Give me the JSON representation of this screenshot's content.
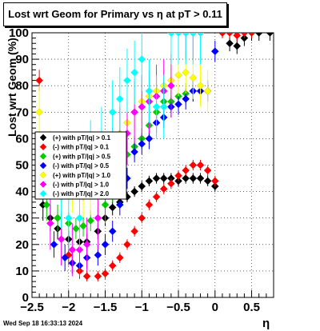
{
  "title": "Lost wrt Geom for Primary vs   η at pT > 0.11",
  "timestamp": "Wed Sep 18 16:33:13 2024",
  "chart_data": {
    "type": "scatter",
    "title": "Lost wrt Geom for Primary vs   η at pT > 0.11",
    "xlabel": "η",
    "ylabel": "Lost wrt Geom (%)",
    "xlim": [
      -2.5,
      0.8
    ],
    "ylim": [
      0,
      100
    ],
    "xticks": [
      "−2.5",
      "−2",
      "−1.5",
      "−1",
      "−0.5",
      "0",
      "0.5"
    ],
    "xtick_values": [
      -2.5,
      -2,
      -1.5,
      -1,
      -0.5,
      0,
      0.5
    ],
    "yticks": [
      "0",
      "10",
      "20",
      "30",
      "40",
      "50",
      "60",
      "70",
      "80",
      "90",
      "100"
    ],
    "ytick_values": [
      0,
      10,
      20,
      30,
      40,
      50,
      60,
      70,
      80,
      90,
      100
    ],
    "grid": true,
    "legend_position": "middle-left",
    "series": [
      {
        "name": "(+) with pT/|q| > 0.1",
        "color": "#000000",
        "x": [
          -2.35,
          -2.25,
          -2.15,
          -2.0,
          -1.85,
          -1.75,
          -1.6,
          -1.5,
          -1.4,
          -1.3,
          -1.2,
          -1.1,
          -1.0,
          -0.9,
          -0.8,
          -0.7,
          -0.6,
          -0.5,
          -0.4,
          -0.3,
          -0.2,
          -0.1,
          0.0,
          0.1,
          0.2,
          0.3,
          0.4,
          0.5,
          0.6,
          0.75
        ],
        "y": [
          35,
          30,
          26,
          22,
          21,
          21,
          25,
          30,
          34,
          36,
          38,
          40,
          42,
          44,
          45,
          45,
          45,
          44,
          45,
          45,
          45,
          44,
          42,
          100,
          96,
          95,
          98,
          100,
          100,
          100
        ],
        "err": [
          6,
          5,
          4,
          3,
          3,
          3,
          3,
          3,
          3,
          2,
          2,
          2,
          2,
          2,
          2,
          2,
          2,
          2,
          2,
          2,
          2,
          2,
          2,
          2,
          3,
          3,
          3,
          3,
          3,
          3
        ]
      },
      {
        "name": "(-) with pT/|q| > 0.1",
        "color": "#ff0000",
        "x": [
          -2.4,
          -2.3,
          -2.15,
          -2.0,
          -1.85,
          -1.75,
          -1.6,
          -1.5,
          -1.4,
          -1.3,
          -1.2,
          -1.1,
          -1.0,
          -0.9,
          -0.8,
          -0.7,
          -0.6,
          -0.5,
          -0.4,
          -0.3,
          -0.2,
          -0.1,
          0.0,
          0.1,
          0.2,
          0.3,
          0.4,
          0.5
        ],
        "y": [
          82,
          45,
          30,
          16,
          10,
          8,
          8,
          9,
          12,
          15,
          20,
          25,
          30,
          35,
          38,
          41,
          43,
          46,
          48,
          50,
          50,
          48,
          44,
          100,
          100,
          99,
          100,
          100
        ],
        "err": [
          4,
          6,
          5,
          4,
          3,
          2,
          2,
          2,
          2,
          2,
          2,
          2,
          2,
          2,
          2,
          2,
          2,
          2,
          2,
          2,
          2,
          2,
          2,
          2,
          2,
          2,
          2,
          2
        ]
      },
      {
        "name": "(+) with pT/|q| > 0.5",
        "color": "#00cc00",
        "x": [
          -2.3,
          -2.15,
          -2.0,
          -1.9,
          -1.8,
          -1.7,
          -1.6,
          -1.5,
          -1.4,
          -1.3,
          -1.2,
          -1.1,
          -1.0,
          -0.9,
          -0.8,
          -0.7,
          -0.6,
          -0.5,
          -0.4,
          -0.3
        ],
        "y": [
          35,
          30,
          28,
          26,
          27,
          29,
          30,
          35,
          40,
          47,
          54,
          57,
          60,
          65,
          70,
          74,
          74,
          76,
          77,
          78
        ],
        "err": [
          6,
          5,
          4,
          4,
          4,
          4,
          4,
          4,
          4,
          4,
          4,
          4,
          4,
          4,
          4,
          4,
          4,
          4,
          4,
          4
        ]
      },
      {
        "name": "(-) with pT/|q| > 0.5",
        "color": "#0000ff",
        "x": [
          -2.2,
          -2.05,
          -1.95,
          -1.85,
          -1.75,
          -1.6,
          -1.5,
          -1.4,
          -1.3,
          -1.2,
          -1.1,
          -1.0,
          -0.9,
          -0.8,
          -0.7,
          -0.6,
          -0.5,
          -0.4,
          -0.3,
          -0.2,
          -0.1,
          0.0
        ],
        "y": [
          20,
          15,
          13,
          12,
          15,
          16,
          20,
          25,
          35,
          45,
          55,
          58,
          60,
          66,
          68,
          72,
          73,
          75,
          78,
          78,
          78,
          93
        ],
        "err": [
          5,
          5,
          4,
          4,
          4,
          4,
          4,
          4,
          4,
          4,
          4,
          4,
          4,
          4,
          4,
          4,
          4,
          4,
          4,
          4,
          4,
          4
        ]
      },
      {
        "name": "(+) with pT/|q| > 1.0",
        "color": "#ffff00",
        "x": [
          -2.4,
          -2.25,
          -2.1,
          -1.95,
          -1.8,
          -1.7,
          -1.6,
          -1.5,
          -1.4,
          -1.3,
          -1.2,
          -1.1,
          -1.0,
          -0.9,
          -0.8,
          -0.7,
          -0.6,
          -0.5,
          -0.4,
          -0.3,
          -0.2,
          -0.1
        ],
        "y": [
          70,
          55,
          45,
          40,
          38,
          39,
          40,
          45,
          55,
          62,
          66,
          70,
          74,
          76,
          78,
          80,
          82,
          84,
          85,
          83,
          80,
          78
        ],
        "err": [
          10,
          8,
          8,
          8,
          8,
          8,
          8,
          8,
          8,
          8,
          8,
          8,
          8,
          8,
          8,
          8,
          8,
          8,
          8,
          8,
          8,
          8
        ]
      },
      {
        "name": "(-) with pT/|q| > 1.0",
        "color": "#ff00ff",
        "x": [
          -2.25,
          -2.1,
          -1.95,
          -1.85,
          -1.75,
          -1.6,
          -1.5,
          -1.4,
          -1.3,
          -1.2,
          -1.1,
          -1.0,
          -0.9,
          -0.8,
          -0.7,
          -0.6,
          -0.5,
          -0.4,
          -0.3,
          -0.2
        ],
        "y": [
          28,
          22,
          18,
          18,
          20,
          30,
          40,
          52,
          60,
          62,
          70,
          72,
          74,
          76,
          78,
          80,
          100,
          100,
          100,
          100
        ],
        "err": [
          10,
          10,
          10,
          10,
          10,
          12,
          12,
          12,
          12,
          12,
          12,
          12,
          12,
          12,
          12,
          12,
          10,
          10,
          10,
          10
        ]
      },
      {
        "name": "(-) with pT/|q| > 2.0",
        "color": "#00ffff",
        "x": [
          -2.1,
          -2.0,
          -1.85,
          -1.7,
          -1.55,
          -1.4,
          -1.3,
          -1.2,
          -1.1,
          -1.0,
          -0.9,
          -0.8,
          -0.7,
          -0.6,
          -0.5,
          -0.4,
          -0.3,
          -0.2
        ],
        "y": [
          38,
          30,
          30,
          55,
          60,
          70,
          75,
          82,
          85,
          90,
          78,
          72,
          72,
          100,
          100,
          100,
          100,
          100
        ],
        "err": [
          12,
          12,
          12,
          12,
          12,
          12,
          12,
          12,
          12,
          12,
          12,
          12,
          12,
          12,
          12,
          12,
          12,
          12
        ]
      }
    ]
  }
}
